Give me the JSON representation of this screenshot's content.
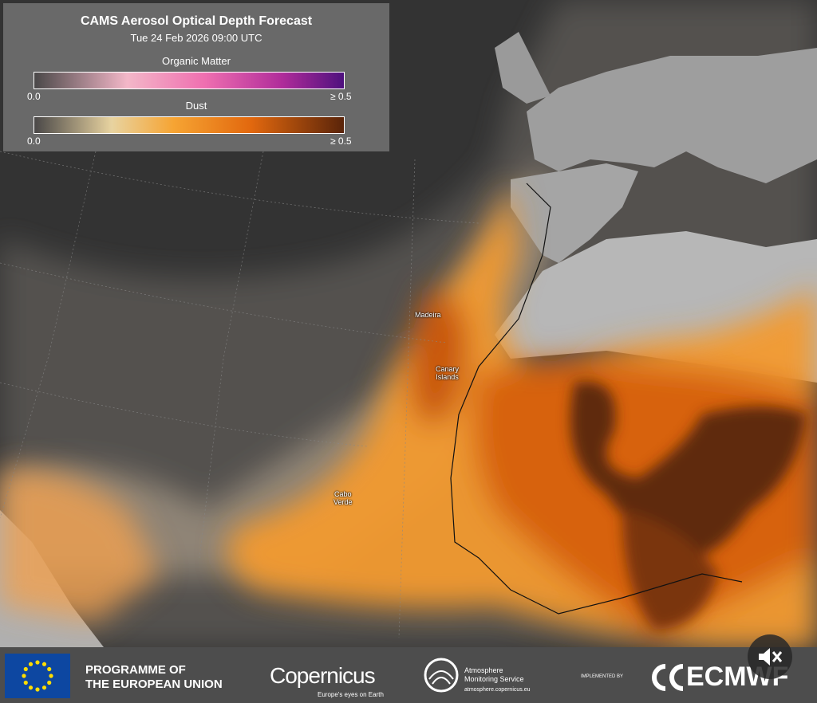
{
  "legend": {
    "title": "CAMS Aerosol Optical Depth Forecast",
    "subtitle": "Tue 24 Feb 2026 09:00 UTC",
    "scales": [
      {
        "name": "Organic Matter",
        "min_label": "0.0",
        "max_label": "≥ 0.5"
      },
      {
        "name": "Dust",
        "min_label": "0.0",
        "max_label": "≥ 0.5"
      }
    ]
  },
  "map_labels": [
    {
      "lines": [
        "Madeira"
      ]
    },
    {
      "lines": [
        "Canary",
        "Islands"
      ]
    },
    {
      "lines": [
        "Cabo",
        "Verde"
      ]
    }
  ],
  "footer": {
    "eu_lines": [
      "PROGRAMME OF",
      "THE EUROPEAN UNION"
    ],
    "copernicus": "Copernicus",
    "copernicus_tagline": "Europe's eyes on Earth",
    "cams_lines": [
      "Atmosphere",
      "Monitoring Service"
    ],
    "cams_url": "atmosphere.copernicus.eu",
    "implemented_by": "IMPLEMENTED BY",
    "ecmwf": "ECMWF"
  }
}
